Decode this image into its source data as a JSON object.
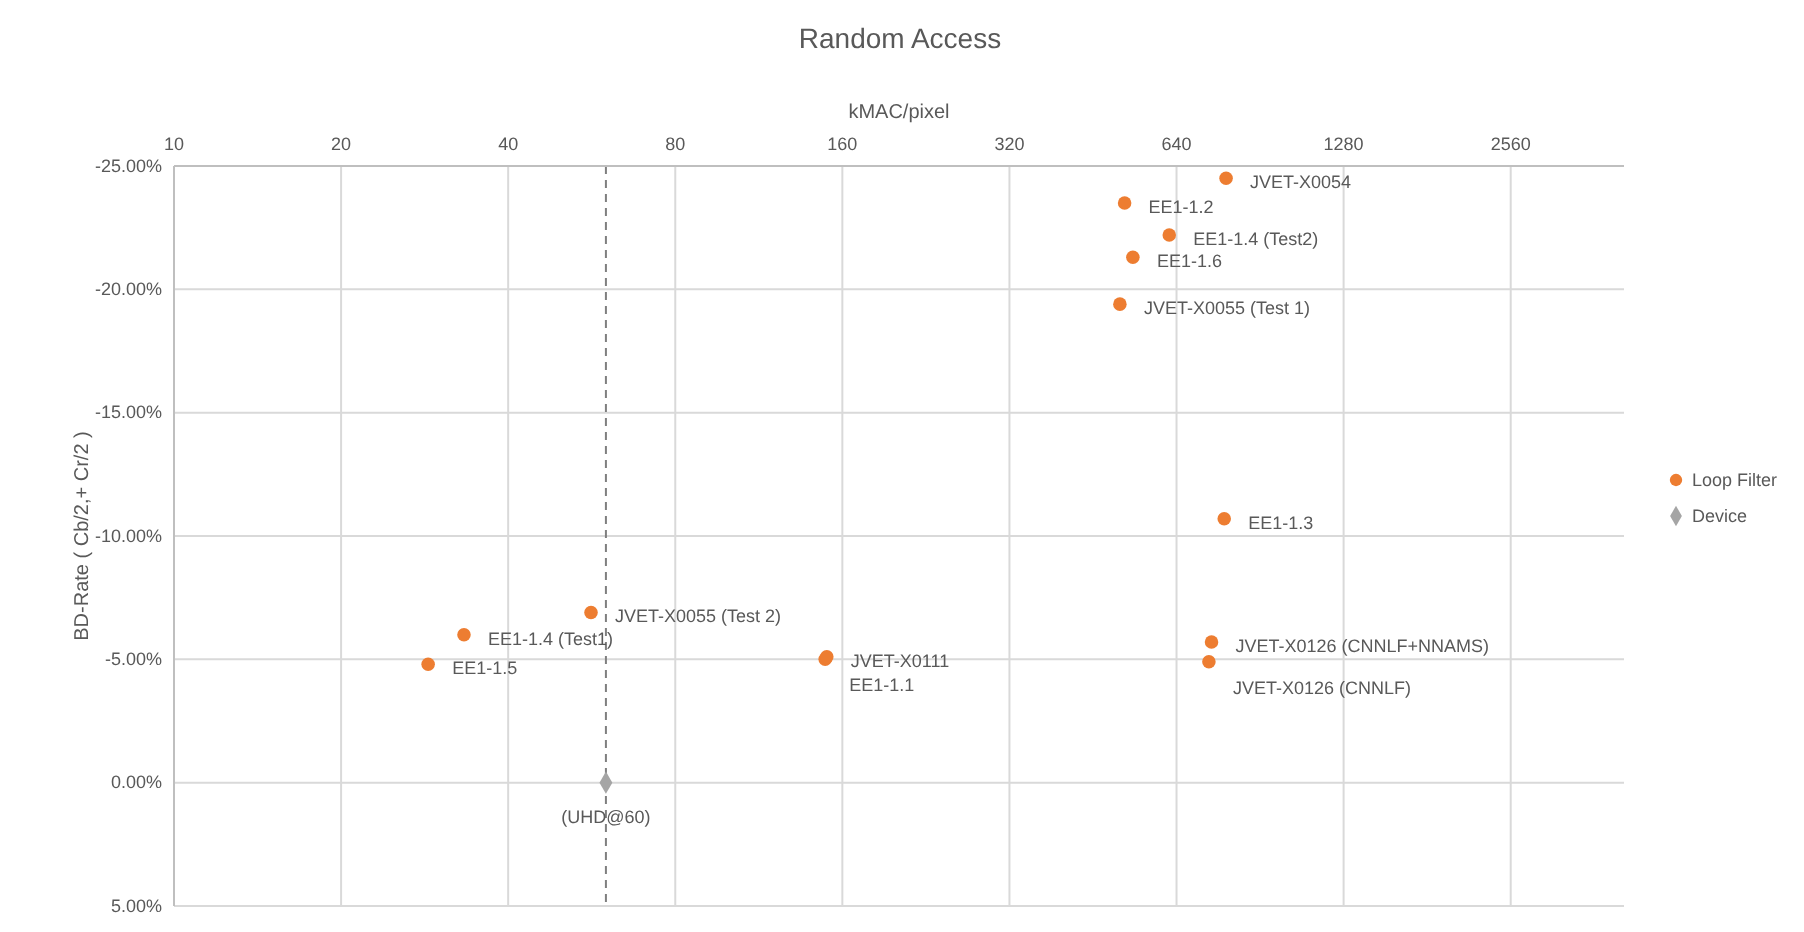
{
  "chart_data": {
    "type": "scatter",
    "title": "Random Access",
    "xlabel": "kMAC/pixel",
    "ylabel": "BD-Rate ( Cb/2,+ Cr/2 )",
    "log": "x",
    "xlim": [
      10,
      4096
    ],
    "xticks": [
      10,
      20,
      40,
      80,
      160,
      320,
      640,
      1280,
      2560
    ],
    "ylim": [
      5,
      -25
    ],
    "yticks": [
      {
        "value": -25,
        "label": "-25.00%"
      },
      {
        "value": -20,
        "label": "-20.00%"
      },
      {
        "value": -15,
        "label": "-15.00%"
      },
      {
        "value": -10,
        "label": "-10.00%"
      },
      {
        "value": -5,
        "label": "-5.00%"
      },
      {
        "value": 0,
        "label": "0.00%"
      },
      {
        "value": 5,
        "label": "5.00%"
      }
    ],
    "grid": true,
    "legend": "right",
    "ref_lines": [
      {
        "axis": "x",
        "value": 60,
        "color": "#7f7f7f",
        "line_style": "dashed"
      }
    ],
    "series": [
      {
        "name": "Loop Filter",
        "color": "#ed7d31",
        "marker": "circle",
        "x": [
          786,
          516,
          621,
          534,
          506,
          780,
          740,
          732,
          28.7,
          33.3,
          56.4,
          149,
          150
        ],
        "values": [
          -24.5,
          -23.5,
          -22.2,
          -21.3,
          -19.4,
          -10.7,
          -5.7,
          -4.9,
          -4.8,
          -6.0,
          -6.9,
          -5.0,
          -5.1
        ]
      },
      {
        "name": "Device",
        "color": "#a5a5a5",
        "marker": "diamond",
        "x": [
          60
        ],
        "values": [
          0
        ]
      }
    ],
    "annotations": [
      {
        "text": "JVET-X0054",
        "x": 786,
        "y": -24.5
      },
      {
        "text": "EE1-1.2",
        "x": 516,
        "y": -23.5
      },
      {
        "text": "EE1-1.4 (Test2)",
        "x": 621,
        "y": -22.2
      },
      {
        "text": "EE1-1.6",
        "x": 534,
        "y": -21.3
      },
      {
        "text": "JVET-X0055 (Test 1)",
        "x": 506,
        "y": -19.4
      },
      {
        "text": "EE1-1.3",
        "x": 780,
        "y": -10.7
      },
      {
        "text": "JVET-X0126 (CNNLF+NNAMS)",
        "x": 740,
        "y": -5.7
      },
      {
        "text": "JVET-X0126 (CNNLF)",
        "x": 732,
        "y": -4.9
      },
      {
        "text": "EE1-1.5",
        "x": 28.7,
        "y": -4.8
      },
      {
        "text": "EE1-1.4 (Test1)",
        "x": 33.3,
        "y": -6.0
      },
      {
        "text": "JVET-X0055 (Test 2)",
        "x": 56.4,
        "y": -6.9
      },
      {
        "text": "JVET-X0111",
        "x": 150,
        "y": -5.1
      },
      {
        "text": "EE1-1.1",
        "x": 149,
        "y": -5.0
      },
      {
        "text": "(UHD@60)",
        "x": 60,
        "y": 0
      }
    ]
  }
}
